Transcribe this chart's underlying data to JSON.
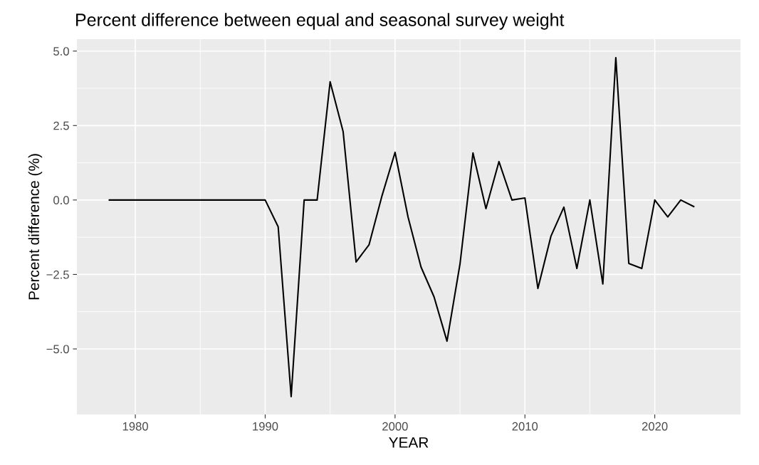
{
  "chart_data": {
    "type": "line",
    "title": "Percent difference between equal and seasonal survey weight",
    "xlabel": "YEAR",
    "ylabel": "Percent difference (%)",
    "x": [
      1978,
      1979,
      1980,
      1981,
      1982,
      1983,
      1984,
      1985,
      1986,
      1987,
      1988,
      1989,
      1990,
      1991,
      1992,
      1993,
      1994,
      1995,
      1996,
      1997,
      1998,
      1999,
      2000,
      2001,
      2002,
      2003,
      2004,
      2005,
      2006,
      2007,
      2008,
      2009,
      2010,
      2011,
      2012,
      2013,
      2014,
      2015,
      2016,
      2017,
      2018,
      2019,
      2020,
      2021,
      2022,
      2023
    ],
    "series": [
      {
        "color": "#000000",
        "values": [
          0,
          0,
          0,
          0,
          0,
          0,
          0,
          0,
          0,
          0,
          0,
          0,
          0,
          -0.9,
          -6.6,
          0,
          0,
          3.97,
          2.3,
          -2.08,
          -1.5,
          0.15,
          1.6,
          -0.57,
          -2.25,
          -3.25,
          -4.74,
          -2.15,
          1.58,
          -0.29,
          1.29,
          0,
          0.07,
          -2.97,
          -1.22,
          -0.24,
          -2.3,
          0,
          -2.82,
          4.78,
          -2.13,
          -2.3,
          0,
          -0.57,
          0,
          -0.22
        ]
      }
    ],
    "xlim": [
      1975.5,
      2026.6
    ],
    "ylim": [
      -7.2,
      5.4
    ],
    "xticks": [
      1980,
      1990,
      2000,
      2010,
      2020
    ],
    "yticks": [
      {
        "value": 5.0,
        "label": "5.0"
      },
      {
        "value": 2.5,
        "label": "2.5"
      },
      {
        "value": 0,
        "label": "0.0"
      },
      {
        "value": -2.5,
        "label": "−2.5"
      },
      {
        "value": -5.0,
        "label": "−5.0"
      }
    ],
    "grid": true,
    "line_style": "solid",
    "marker": "none"
  }
}
